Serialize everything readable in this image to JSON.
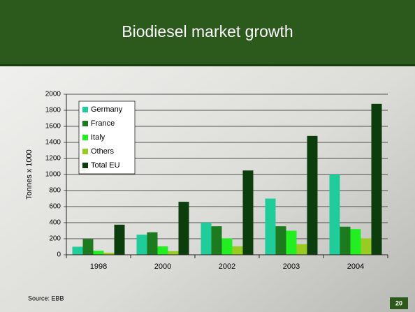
{
  "chart_data": {
    "type": "bar",
    "title": "Biodiesel market growth",
    "y_label": "Tonnes x 1000",
    "categories": [
      "1998",
      "2000",
      "2002",
      "2003",
      "2004"
    ],
    "series": [
      {
        "name": "Germany",
        "color": "#1fcc9a",
        "values": [
          100,
          250,
          400,
          700,
          1000
        ]
      },
      {
        "name": "France",
        "color": "#1e7a1e",
        "values": [
          195,
          280,
          355,
          355,
          350
        ]
      },
      {
        "name": "Italy",
        "color": "#22ee22",
        "values": [
          50,
          105,
          205,
          300,
          320
        ]
      },
      {
        "name": "Others",
        "color": "#99cc22",
        "values": [
          25,
          45,
          105,
          130,
          205
        ]
      },
      {
        "name": "Total EU",
        "color": "#0c3d0c",
        "values": [
          375,
          660,
          1050,
          1480,
          1880
        ]
      }
    ],
    "ylim": [
      0,
      2000
    ],
    "yticks": [
      0,
      200,
      400,
      600,
      800,
      1000,
      1200,
      1400,
      1600,
      1800,
      2000
    ],
    "grid": true,
    "legend": "upper left"
  },
  "footer": {
    "source": "Source: EBB",
    "page": "20"
  }
}
